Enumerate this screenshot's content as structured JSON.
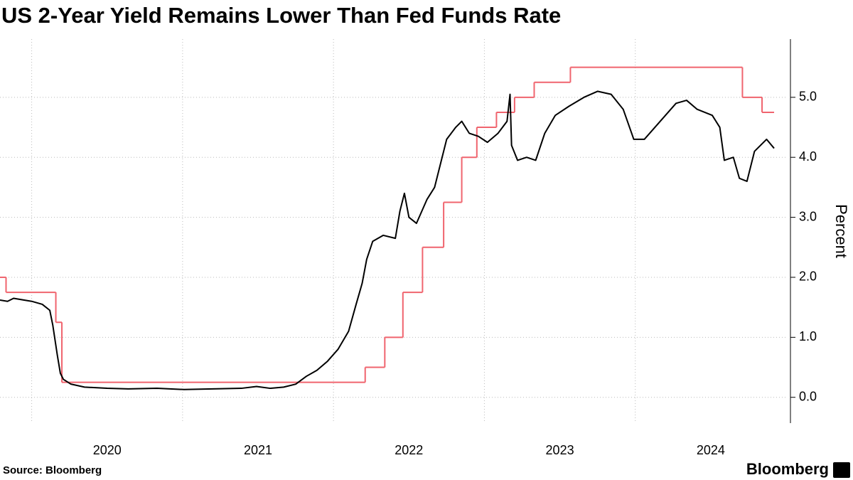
{
  "chart_data": {
    "type": "line",
    "title": "US 2-Year Yield Remains Lower Than Fed Funds Rate",
    "y_axis_label": "Percent",
    "y_axis_side": "right",
    "source": "Source: Bloomberg",
    "brand": "Bloomberg",
    "xlim": [
      2019.79,
      2025.0
    ],
    "xticks": [
      {
        "value": 2020.5,
        "label": "2020"
      },
      {
        "value": 2021.5,
        "label": "2021"
      },
      {
        "value": 2022.5,
        "label": "2022"
      },
      {
        "value": 2023.5,
        "label": "2023"
      },
      {
        "value": 2024.5,
        "label": "2024"
      }
    ],
    "xgrid_lines": [
      2020,
      2021,
      2022,
      2023,
      2024
    ],
    "ylim": [
      -0.43,
      5.97
    ],
    "yticks": [
      {
        "value": 0,
        "label": "0.0"
      },
      {
        "value": 1,
        "label": "1.0"
      },
      {
        "value": 2,
        "label": "2.0"
      },
      {
        "value": 3,
        "label": "3.0"
      },
      {
        "value": 4,
        "label": "4.0"
      },
      {
        "value": 5,
        "label": "5.0"
      }
    ],
    "grid": true,
    "series": [
      {
        "color": "#f0646e",
        "step": true,
        "x": [
          2019.79,
          2019.83,
          2020.16,
          2020.2,
          2022.21,
          2022.34,
          2022.46,
          2022.59,
          2022.73,
          2022.85,
          2022.95,
          2023.08,
          2023.2,
          2023.33,
          2023.57,
          2024.71,
          2024.84
        ],
        "x_end": 2024.92,
        "values": [
          2.0,
          1.75,
          1.25,
          0.25,
          0.5,
          1.0,
          1.75,
          2.5,
          3.25,
          4.0,
          4.5,
          4.75,
          5.0,
          5.25,
          5.5,
          5.0,
          4.75
        ]
      },
      {
        "color": "#000000",
        "x": [
          2019.79,
          2019.84,
          2019.88,
          2019.95,
          2020.0,
          2020.07,
          2020.12,
          2020.14,
          2020.17,
          2020.19,
          2020.21,
          2020.26,
          2020.35,
          2020.5,
          2020.64,
          2020.83,
          2021.01,
          2021.2,
          2021.39,
          2021.49,
          2021.58,
          2021.67,
          2021.75,
          2021.82,
          2021.89,
          2021.96,
          2022.03,
          2022.1,
          2022.15,
          2022.19,
          2022.22,
          2022.26,
          2022.33,
          2022.41,
          2022.44,
          2022.47,
          2022.5,
          2022.55,
          2022.62,
          2022.67,
          2022.71,
          2022.75,
          2022.81,
          2022.85,
          2022.9,
          2022.96,
          2023.02,
          2023.09,
          2023.15,
          2023.17,
          2023.18,
          2023.22,
          2023.28,
          2023.34,
          2023.4,
          2023.47,
          2023.56,
          2023.66,
          2023.75,
          2023.84,
          2023.92,
          2023.99,
          2024.06,
          2024.13,
          2024.2,
          2024.27,
          2024.34,
          2024.41,
          2024.51,
          2024.56,
          2024.59,
          2024.65,
          2024.69,
          2024.74,
          2024.79,
          2024.87,
          2024.92
        ],
        "values": [
          1.62,
          1.6,
          1.65,
          1.62,
          1.6,
          1.55,
          1.45,
          1.2,
          0.7,
          0.4,
          0.3,
          0.22,
          0.17,
          0.15,
          0.14,
          0.15,
          0.13,
          0.14,
          0.15,
          0.18,
          0.15,
          0.17,
          0.22,
          0.35,
          0.45,
          0.6,
          0.8,
          1.1,
          1.55,
          1.9,
          2.3,
          2.6,
          2.7,
          2.65,
          3.1,
          3.4,
          3.0,
          2.9,
          3.3,
          3.5,
          3.9,
          4.3,
          4.5,
          4.6,
          4.4,
          4.35,
          4.25,
          4.4,
          4.6,
          5.05,
          4.2,
          3.95,
          4.0,
          3.95,
          4.4,
          4.7,
          4.85,
          5.0,
          5.1,
          5.05,
          4.8,
          4.3,
          4.3,
          4.5,
          4.7,
          4.9,
          4.95,
          4.8,
          4.7,
          4.5,
          3.95,
          4.0,
          3.65,
          3.6,
          4.1,
          4.3,
          4.15
        ]
      }
    ]
  }
}
